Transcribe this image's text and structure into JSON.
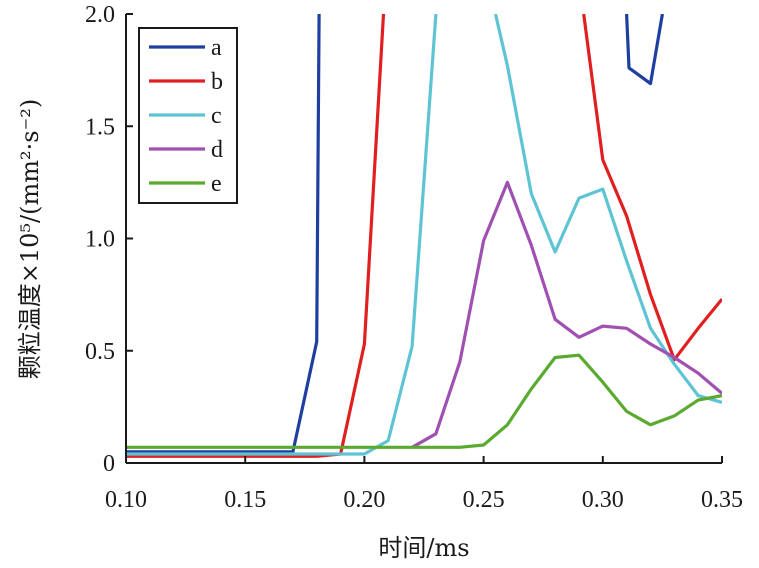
{
  "chart_data": {
    "type": "line",
    "xlabel": "时间/ms",
    "ylabel": "颗粒温度×10⁵/(mm²·s⁻²)",
    "xlim": [
      0.1,
      0.35
    ],
    "ylim": [
      0,
      2.0
    ],
    "xticks": [
      "0.10",
      "0.15",
      "0.20",
      "0.25",
      "0.30",
      "0.35"
    ],
    "yticks": [
      "0",
      "0.5",
      "1.0",
      "1.5",
      "2.0"
    ],
    "grid": false,
    "legend_position": "top-left",
    "series": [
      {
        "name": "a",
        "color": "#1f3fa0",
        "x": [
          0.1,
          0.11,
          0.12,
          0.13,
          0.14,
          0.15,
          0.16,
          0.17,
          0.18,
          0.181,
          0.31,
          0.311,
          0.32,
          0.325
        ],
        "y": [
          0.05,
          0.05,
          0.05,
          0.05,
          0.05,
          0.05,
          0.05,
          0.05,
          0.54,
          2.0,
          2.0,
          1.76,
          1.69,
          2.0
        ],
        "segments": [
          [
            0,
            9
          ],
          [
            10,
            13
          ]
        ]
      },
      {
        "name": "b",
        "color": "#e02020",
        "x": [
          0.1,
          0.11,
          0.12,
          0.13,
          0.14,
          0.15,
          0.16,
          0.17,
          0.18,
          0.19,
          0.2,
          0.208,
          0.292,
          0.3,
          0.31,
          0.32,
          0.33,
          0.34,
          0.35
        ],
        "y": [
          0.03,
          0.03,
          0.03,
          0.03,
          0.03,
          0.03,
          0.03,
          0.03,
          0.03,
          0.04,
          0.53,
          2.0,
          2.0,
          1.35,
          1.1,
          0.75,
          0.46,
          0.6,
          0.73
        ],
        "segments": [
          [
            0,
            11
          ],
          [
            12,
            18
          ]
        ]
      },
      {
        "name": "c",
        "color": "#5ec4d4",
        "x": [
          0.1,
          0.11,
          0.12,
          0.13,
          0.14,
          0.15,
          0.16,
          0.17,
          0.18,
          0.19,
          0.2,
          0.21,
          0.22,
          0.23,
          0.255,
          0.26,
          0.27,
          0.28,
          0.29,
          0.3,
          0.31,
          0.32,
          0.33,
          0.34,
          0.35
        ],
        "y": [
          0.04,
          0.04,
          0.04,
          0.04,
          0.04,
          0.04,
          0.04,
          0.04,
          0.04,
          0.04,
          0.04,
          0.1,
          0.52,
          2.0,
          2.0,
          1.77,
          1.2,
          0.94,
          1.18,
          1.22,
          0.9,
          0.6,
          0.44,
          0.3,
          0.27
        ],
        "segments": [
          [
            0,
            13
          ],
          [
            14,
            24
          ]
        ]
      },
      {
        "name": "d",
        "color": "#a050b0",
        "x": [
          0.22,
          0.23,
          0.24,
          0.25,
          0.26,
          0.27,
          0.28,
          0.29,
          0.3,
          0.31,
          0.32,
          0.33,
          0.34,
          0.35
        ],
        "y": [
          0.07,
          0.13,
          0.45,
          0.99,
          1.25,
          0.97,
          0.64,
          0.56,
          0.61,
          0.6,
          0.53,
          0.47,
          0.4,
          0.31
        ],
        "segments": [
          [
            0,
            13
          ]
        ]
      },
      {
        "name": "e",
        "color": "#5aaa30",
        "x": [
          0.1,
          0.12,
          0.14,
          0.16,
          0.18,
          0.2,
          0.22,
          0.24,
          0.25,
          0.26,
          0.27,
          0.28,
          0.29,
          0.3,
          0.31,
          0.32,
          0.33,
          0.34,
          0.35
        ],
        "y": [
          0.07,
          0.07,
          0.07,
          0.07,
          0.07,
          0.07,
          0.07,
          0.07,
          0.08,
          0.17,
          0.33,
          0.47,
          0.48,
          0.36,
          0.23,
          0.17,
          0.21,
          0.28,
          0.3
        ],
        "segments": [
          [
            0,
            18
          ]
        ]
      }
    ]
  }
}
